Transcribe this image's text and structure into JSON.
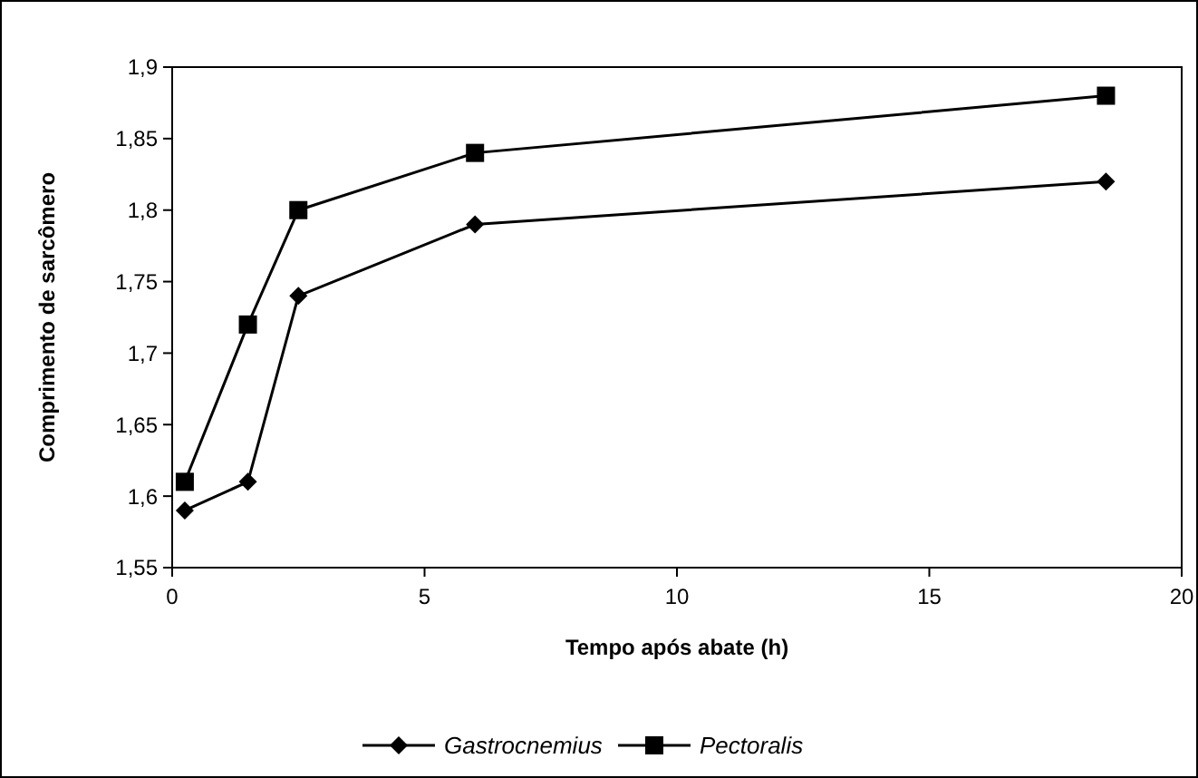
{
  "chart_data": {
    "type": "line",
    "xlabel": "Tempo após abate (h)",
    "ylabel": "Comprimento de sarcômero",
    "xlim": [
      0,
      20
    ],
    "xticks": [
      0,
      5,
      10,
      15,
      20
    ],
    "ylim": [
      1.55,
      1.9
    ],
    "yticks": [
      {
        "value": 1.55,
        "label": "1,55"
      },
      {
        "value": 1.6,
        "label": "1,6"
      },
      {
        "value": 1.65,
        "label": "1,65"
      },
      {
        "value": 1.7,
        "label": "1,7"
      },
      {
        "value": 1.75,
        "label": "1,75"
      },
      {
        "value": 1.8,
        "label": "1,8"
      },
      {
        "value": 1.85,
        "label": "1,85"
      },
      {
        "value": 1.9,
        "label": "1,9"
      }
    ],
    "x": [
      0.25,
      1.5,
      2.5,
      6,
      18.5
    ],
    "series": [
      {
        "name": "Gastrocnemius",
        "color": "#000000",
        "marker": "diamond",
        "values": [
          1.59,
          1.61,
          1.74,
          1.79,
          1.82
        ]
      },
      {
        "name": "Pectoralis",
        "color": "#000000",
        "marker": "square",
        "values": [
          1.61,
          1.72,
          1.8,
          1.84,
          1.88
        ]
      }
    ],
    "grid": false,
    "legend": "bottom",
    "line_style": "solid"
  }
}
